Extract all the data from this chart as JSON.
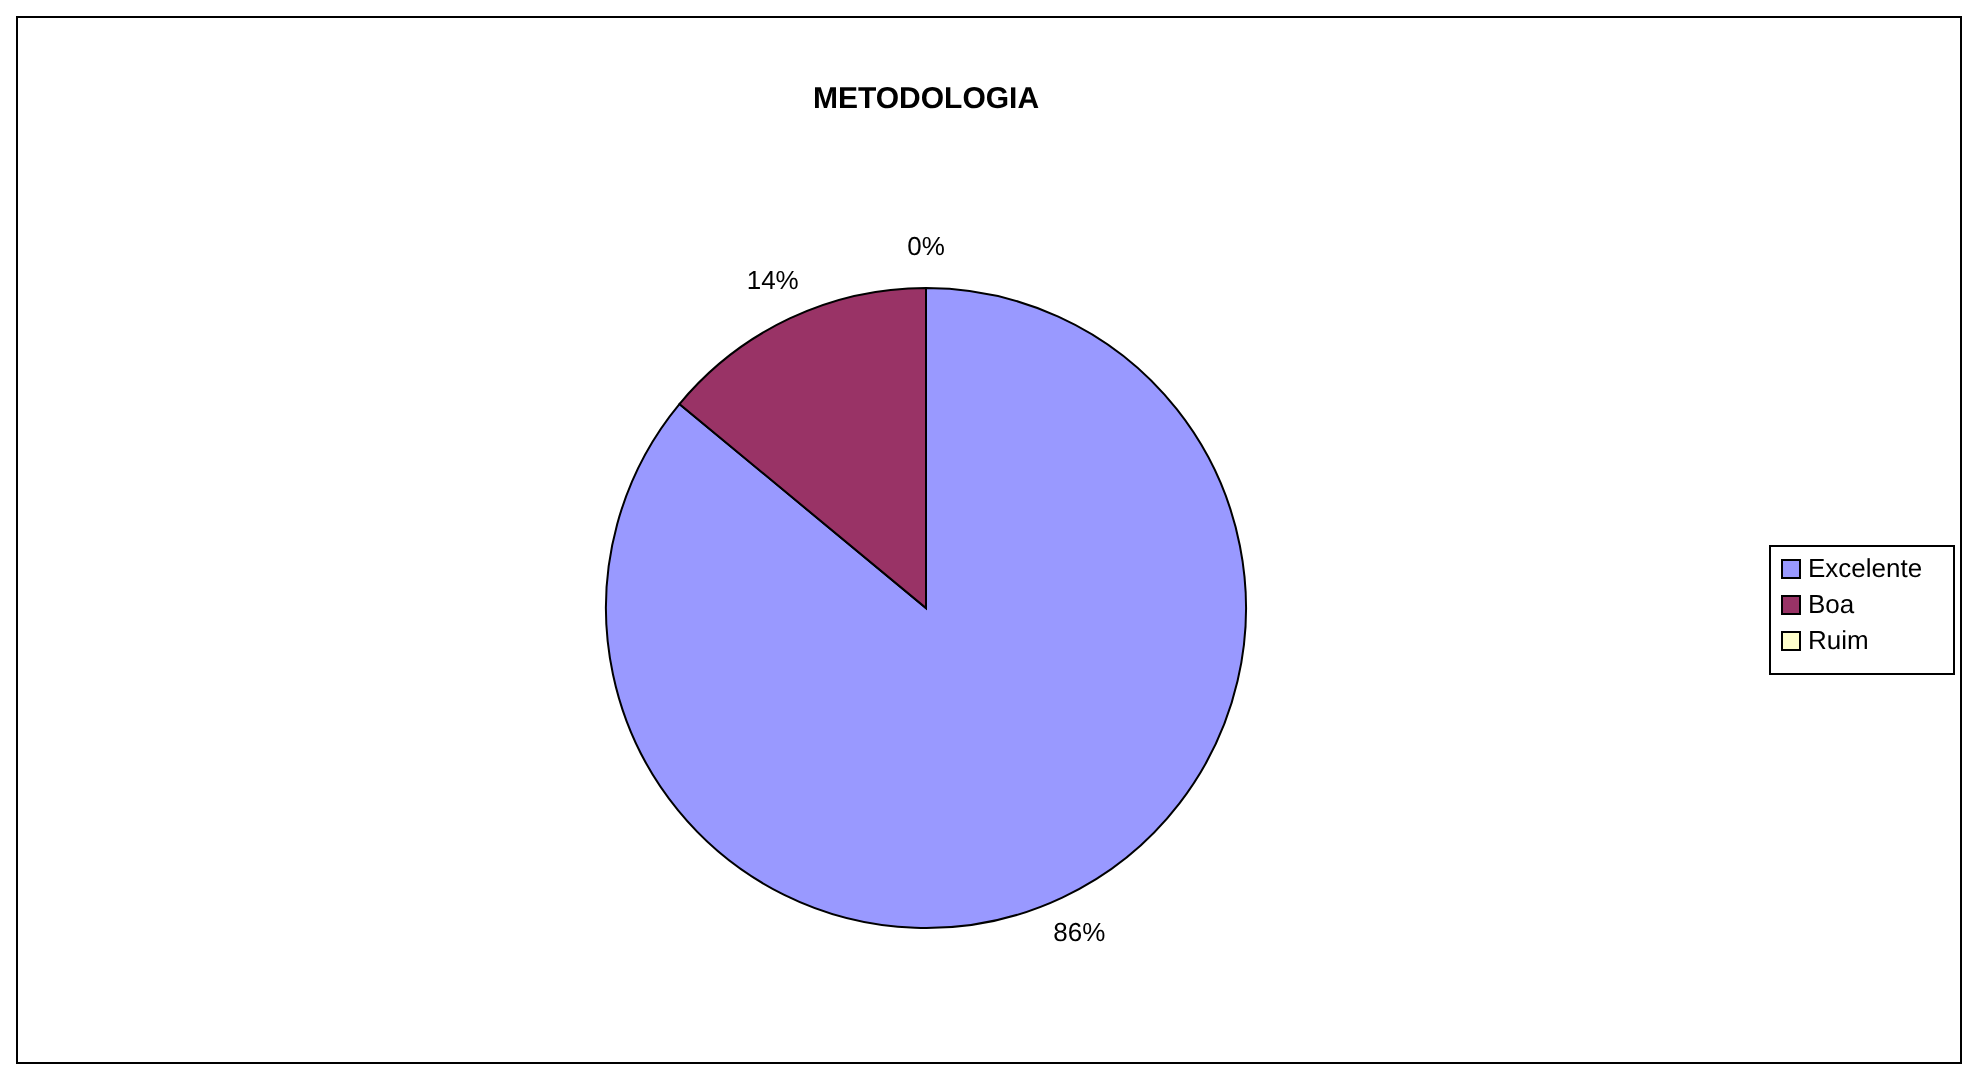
{
  "chart_data": {
    "type": "pie",
    "title": "METODOLOGIA",
    "categories": [
      "Excelente",
      "Boa",
      "Ruim"
    ],
    "values": [
      86,
      14,
      0
    ],
    "colors": [
      "#9999ff",
      "#993366",
      "#ffffcc"
    ],
    "value_labels": [
      "86%",
      "14%",
      "0%"
    ],
    "legend": "right"
  }
}
